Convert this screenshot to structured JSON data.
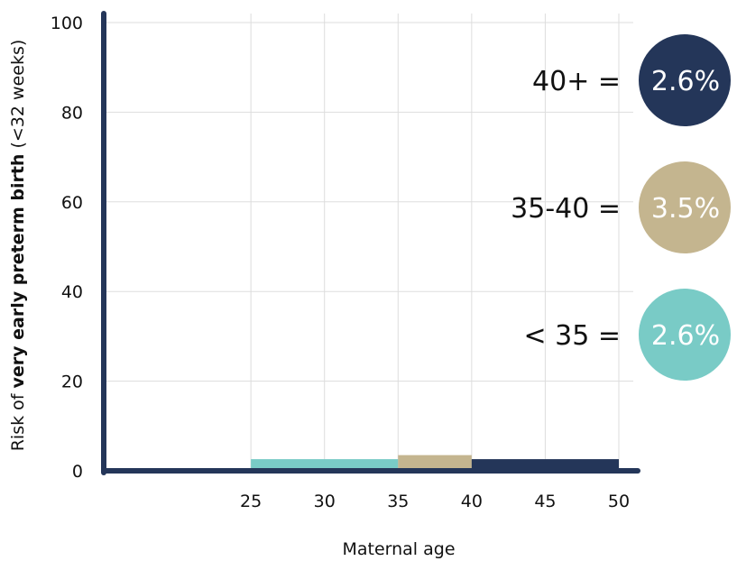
{
  "chart_data": {
    "type": "bar",
    "xlabel": "Maternal age",
    "ylabel_prefix": "Risk of ",
    "ylabel_bold": "very early preterm birth",
    "ylabel_suffix": " (<32 weeks)",
    "xlim": [
      15,
      50
    ],
    "ylim": [
      0,
      100
    ],
    "x_ticks": [
      "25",
      "30",
      "35",
      "40",
      "45",
      "50"
    ],
    "y_ticks": [
      "0",
      "20",
      "40",
      "60",
      "80",
      "100"
    ],
    "grid": true,
    "series": [
      {
        "name": "< 35",
        "x_start": 25,
        "x_end": 35,
        "value": 2.6,
        "value_label": "2.6%",
        "color": "#79cbc6"
      },
      {
        "name": "35-40",
        "x_start": 35,
        "x_end": 40,
        "value": 3.5,
        "value_label": "3.5%",
        "color": "#c4b58f"
      },
      {
        "name": "40+",
        "x_start": 40,
        "x_end": 50,
        "value": 2.6,
        "value_label": "2.6%",
        "color": "#243659"
      }
    ],
    "axis_color": "#243659"
  }
}
